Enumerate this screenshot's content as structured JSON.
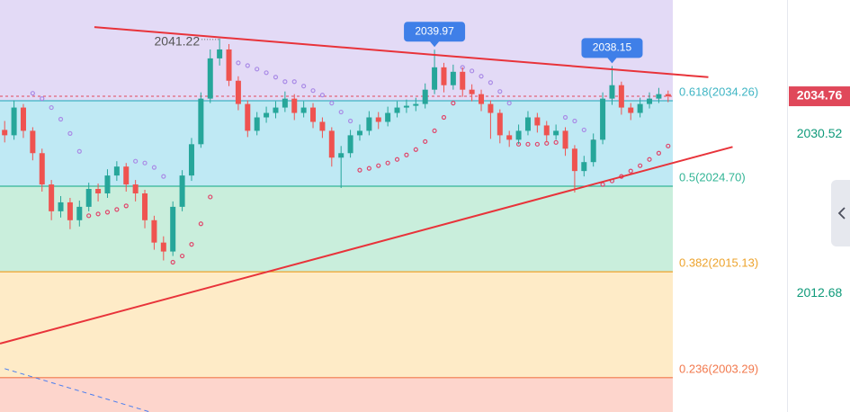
{
  "chart_data": {
    "type": "candlestick",
    "ylim": [
      1999.45,
      2045.53
    ],
    "xlim": [
      -0.5,
      71.5
    ],
    "up_color": "#26a69a",
    "down_color": "#ef5350",
    "open": [
      2031.0,
      2030.4,
      2033.5,
      2030.9,
      2028.4,
      2024.9,
      2021.9,
      2022.9,
      2020.9,
      2022.4,
      2024.4,
      2023.9,
      2025.9,
      2026.9,
      2024.9,
      2023.9,
      2020.9,
      2018.4,
      2017.4,
      2022.4,
      2025.9,
      2029.4,
      2034.5,
      2039.0,
      2040.0,
      2036.5,
      2033.9,
      2030.9,
      2032.4,
      2032.9,
      2033.5,
      2034.5,
      2032.9,
      2033.5,
      2031.9,
      2030.9,
      2027.9,
      2028.4,
      2030.4,
      2030.9,
      2032.4,
      2031.9,
      2032.9,
      2033.5,
      2033.7,
      2033.9,
      2035.5,
      2038.0,
      2036.0,
      2037.5,
      2035.5,
      2035.0,
      2033.9,
      2032.9,
      2030.4,
      2029.9,
      2030.9,
      2032.4,
      2031.5,
      2030.4,
      2030.9,
      2028.9,
      2026.4,
      2027.4,
      2029.9,
      2034.5,
      2036.0,
      2033.5,
      2032.9,
      2033.9,
      2034.5,
      2035.0
    ],
    "high": [
      2032.0,
      2034.3,
      2033.9,
      2031.3,
      2028.9,
      2025.4,
      2023.6,
      2023.4,
      2023.1,
      2025.1,
      2025.0,
      2026.6,
      2027.5,
      2027.3,
      2025.4,
      2024.3,
      2021.4,
      2019.1,
      2023.0,
      2026.5,
      2030.1,
      2035.2,
      2040.0,
      2041.22,
      2040.6,
      2037.0,
      2034.3,
      2033.0,
      2033.6,
      2034.2,
      2035.3,
      2035.0,
      2034.2,
      2034.0,
      2032.4,
      2031.3,
      2029.2,
      2031.0,
      2031.6,
      2033.1,
      2033.0,
      2033.6,
      2034.2,
      2034.4,
      2034.6,
      2036.2,
      2039.97,
      2038.5,
      2038.3,
      2038.0,
      2036.1,
      2035.5,
      2034.3,
      2033.3,
      2030.9,
      2031.6,
      2033.1,
      2032.9,
      2032.0,
      2031.6,
      2031.3,
      2029.3,
      2028.1,
      2030.6,
      2035.2,
      2038.15,
      2036.4,
      2034.0,
      2034.6,
      2035.2,
      2035.7,
      2035.4
    ],
    "low": [
      2029.6,
      2029.9,
      2030.1,
      2027.6,
      2024.1,
      2020.9,
      2021.2,
      2019.9,
      2020.2,
      2021.9,
      2023.0,
      2023.4,
      2025.3,
      2024.1,
      2023.0,
      2020.0,
      2017.6,
      2016.4,
      2016.9,
      2021.9,
      2025.3,
      2029.0,
      2034.0,
      2038.2,
      2035.9,
      2033.2,
      2030.2,
      2030.4,
      2031.8,
      2032.3,
      2033.0,
      2032.1,
      2032.4,
      2031.2,
      2030.1,
      2026.9,
      2024.5,
      2027.9,
      2029.8,
      2030.4,
      2031.1,
      2031.4,
      2032.4,
      2032.9,
      2033.1,
      2033.4,
      2035.0,
      2035.2,
      2035.5,
      2034.7,
      2034.2,
      2033.1,
      2030.0,
      2029.5,
      2029.1,
      2029.4,
      2030.4,
      2030.7,
      2029.6,
      2029.9,
      2028.1,
      2024.0,
      2025.8,
      2026.9,
      2029.4,
      2033.8,
      2032.7,
      2032.1,
      2032.4,
      2033.4,
      2034.0,
      2034.1
    ],
    "close": [
      2030.4,
      2033.5,
      2030.9,
      2028.4,
      2024.9,
      2021.9,
      2022.9,
      2020.9,
      2022.4,
      2024.4,
      2023.9,
      2025.9,
      2026.9,
      2024.9,
      2023.9,
      2020.9,
      2018.4,
      2017.4,
      2022.4,
      2025.9,
      2029.4,
      2034.5,
      2039.0,
      2040.0,
      2036.5,
      2033.9,
      2030.9,
      2032.4,
      2032.9,
      2033.5,
      2034.5,
      2032.9,
      2033.5,
      2031.9,
      2030.9,
      2027.9,
      2028.4,
      2030.4,
      2030.9,
      2032.4,
      2031.9,
      2032.9,
      2033.5,
      2033.7,
      2033.9,
      2035.5,
      2038.0,
      2036.0,
      2037.5,
      2035.5,
      2035.0,
      2033.9,
      2032.9,
      2030.4,
      2029.9,
      2030.9,
      2032.4,
      2031.5,
      2030.4,
      2030.9,
      2028.9,
      2026.4,
      2027.4,
      2029.9,
      2034.5,
      2036.0,
      2033.5,
      2032.9,
      2033.9,
      2034.5,
      2035.0,
      2034.76
    ],
    "sar": [
      null,
      null,
      null,
      2035.1,
      2034.5,
      2033.5,
      2032.2,
      2030.6,
      2028.6,
      2021.4,
      2021.6,
      2021.8,
      2022.1,
      2022.5,
      2027.5,
      2027.3,
      2026.8,
      2025.8,
      2016.2,
      2016.9,
      2018.2,
      2020.5,
      2023.5,
      null,
      null,
      2038.5,
      2038.2,
      2037.8,
      2037.4,
      2036.9,
      2036.4,
      2036.4,
      2035.9,
      2035.4,
      2034.9,
      2034.0,
      2033.0,
      2032.0,
      2026.5,
      2026.7,
      2027.0,
      2027.3,
      2027.7,
      2028.2,
      2028.8,
      2029.7,
      2030.9,
      2032.4,
      2034.0,
      2038.0,
      2037.6,
      2037.0,
      2036.3,
      2035.3,
      2034.0,
      2029.4,
      2029.4,
      2029.4,
      2029.5,
      2029.6,
      2032.4,
      2032.0,
      2031.0,
      2029.7,
      2024.9,
      2025.3,
      2025.8,
      2026.4,
      2027.0,
      2027.7,
      2028.4,
      2029.2
    ],
    "sar_above_color": "#a98ae6",
    "sar_below_color": "#e0456a",
    "top_fill": "#e3daf6",
    "fib_levels": [
      {
        "ratio": 0.618,
        "price": 2034.26,
        "label": "0.618(2034.26)",
        "color": "#3fb5c4",
        "fill": "#bfe9f4"
      },
      {
        "ratio": 0.5,
        "price": 2024.7,
        "label": "0.5(2024.70)",
        "color": "#33b596",
        "fill": "#c9eedc"
      },
      {
        "ratio": 0.382,
        "price": 2015.13,
        "label": "0.382(2015.13)",
        "color": "#eda32c",
        "fill": "#feebc7"
      },
      {
        "ratio": 0.236,
        "price": 2003.29,
        "label": "0.236(2003.29)",
        "color": "#f2784c",
        "fill": "#fdd5cc"
      }
    ],
    "trendlines": [
      {
        "points": [
          [
            9.6,
            2042.5
          ],
          [
            75.3,
            2036.9
          ]
        ],
        "color": "#e8333a",
        "dashed": false
      },
      {
        "points": [
          [
            -0.5,
            2007.1
          ],
          [
            77.9,
            2029.1
          ]
        ],
        "color": "#e8333a",
        "dashed": false
      },
      {
        "points": [
          [
            0.0,
            2004.3
          ],
          [
            15.4,
            1999.5
          ]
        ],
        "color": "#4a7ef0",
        "dashed": true
      }
    ],
    "annotations": [
      {
        "candle": 23,
        "style": "text"
      },
      {
        "candle": 46,
        "style": "bubble"
      },
      {
        "candle": 65,
        "style": "bubble"
      }
    ],
    "last_price_color": "#e0485a",
    "axis_labels": [
      2030.52,
      2012.68
    ],
    "axis_label_color": "#0f9a7a"
  }
}
